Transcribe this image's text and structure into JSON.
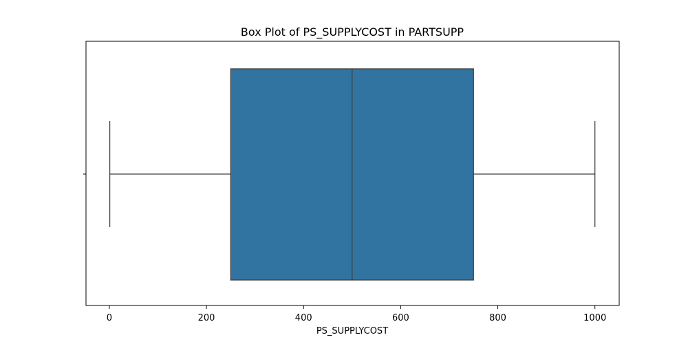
{
  "chart_data": {
    "type": "box",
    "title": "Box Plot of PS_SUPPLYCOST in PARTSUPP",
    "xlabel": "PS_SUPPLYCOST",
    "ylabel": "",
    "orientation": "horizontal",
    "xlim": [
      -48,
      1050
    ],
    "xticks": [
      0,
      200,
      400,
      600,
      800,
      1000
    ],
    "xtick_labels": [
      "0",
      "200",
      "400",
      "600",
      "800",
      "1000"
    ],
    "grid": false,
    "legend": false,
    "series": [
      {
        "whisker_low": 1,
        "q1": 250,
        "median": 500,
        "q3": 750,
        "whisker_high": 1000
      }
    ],
    "colors": {
      "box_fill": "#3274a1",
      "box_edge": "#3f3f3f",
      "axis": "#000000"
    }
  }
}
